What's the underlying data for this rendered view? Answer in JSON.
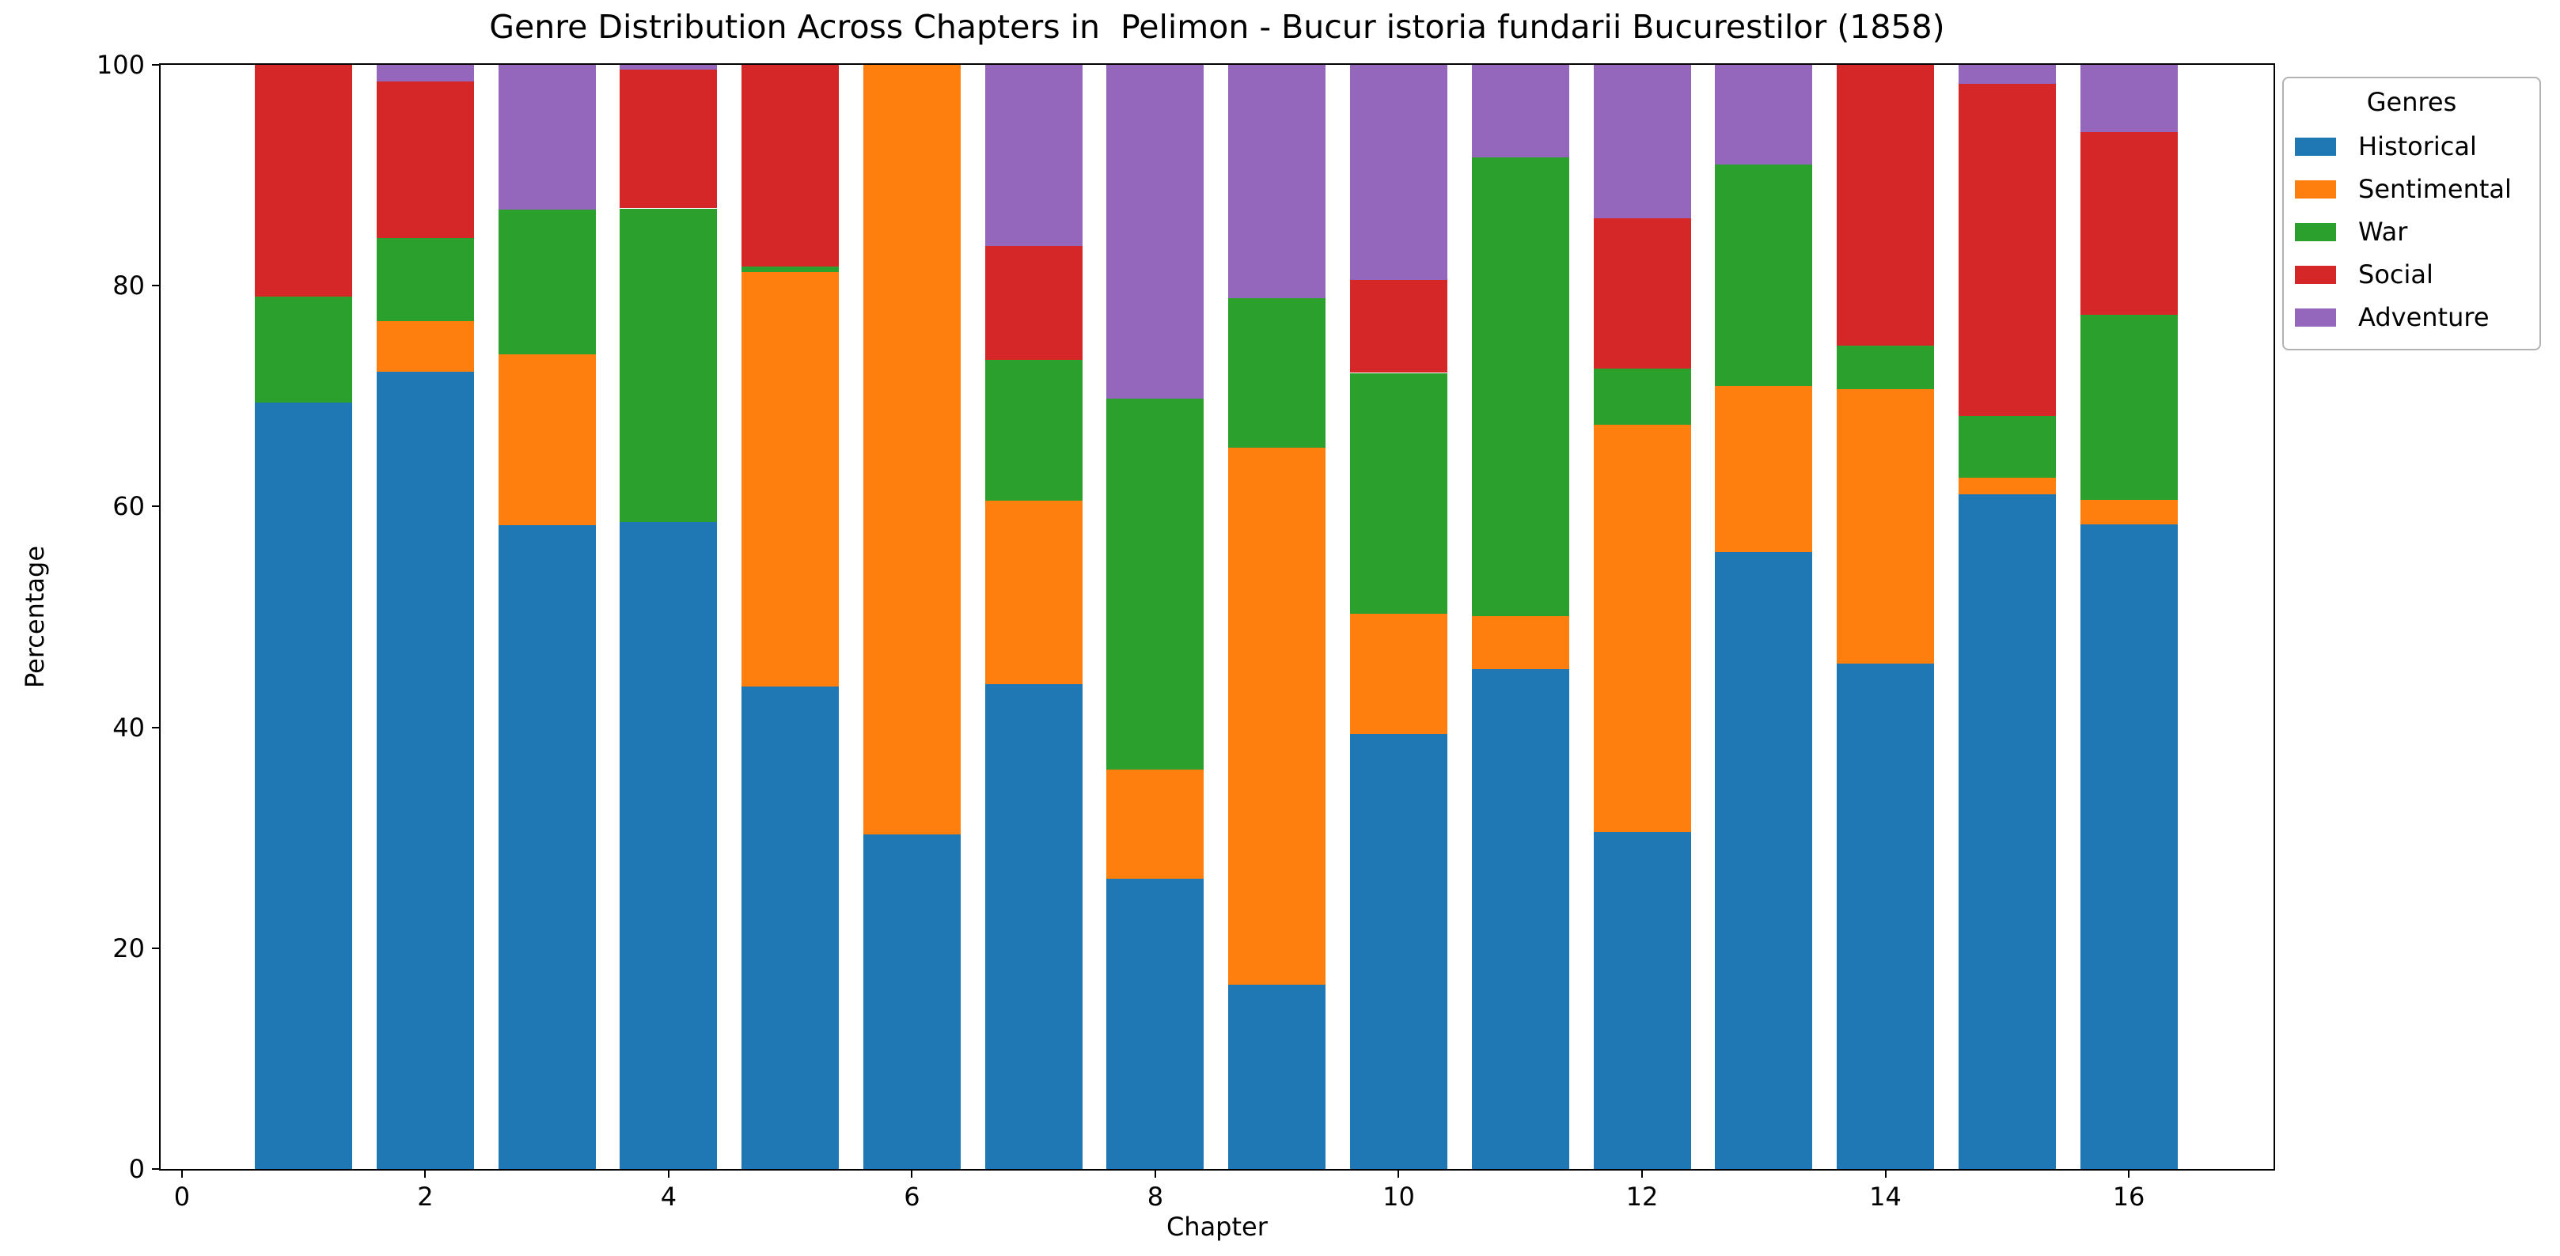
{
  "title": "Genre Distribution Across Chapters in  Pelimon - Bucur istoria fundarii Bucurestilor (1858)",
  "xlabel": "Chapter",
  "ylabel": "Percentage",
  "legend": {
    "title": "Genres",
    "items": [
      {
        "label": "Historical",
        "color": "#1f77b4"
      },
      {
        "label": "Sentimental",
        "color": "#ff7f0e"
      },
      {
        "label": "War",
        "color": "#2ca02c"
      },
      {
        "label": "Social",
        "color": "#d62728"
      },
      {
        "label": "Adventure",
        "color": "#9467bd"
      }
    ]
  },
  "chart_data": {
    "type": "bar",
    "stacked": true,
    "title": "Genre Distribution Across Chapters in  Pelimon - Bucur istoria fundarii Bucurestilor (1858)",
    "xlabel": "Chapter",
    "ylabel": "Percentage",
    "categories": [
      1,
      2,
      3,
      4,
      5,
      6,
      7,
      8,
      9,
      10,
      11,
      12,
      13,
      14,
      15,
      16
    ],
    "series": [
      {
        "name": "Historical",
        "color": "#1f77b4",
        "values": [
          69.4,
          72.2,
          58.3,
          58.6,
          43.7,
          30.3,
          43.9,
          26.3,
          16.7,
          39.4,
          45.3,
          30.5,
          55.9,
          45.8,
          61.1,
          58.4
        ]
      },
      {
        "name": "Sentimental",
        "color": "#ff7f0e",
        "values": [
          0,
          4.6,
          15.5,
          0,
          37.5,
          69.7,
          16.6,
          9.9,
          48.6,
          10.9,
          4.8,
          36.9,
          15.0,
          24.8,
          1.5,
          2.2
        ]
      },
      {
        "name": "War",
        "color": "#2ca02c",
        "values": [
          9.6,
          7.5,
          13.1,
          28.4,
          0.5,
          0,
          12.8,
          33.6,
          13.6,
          21.8,
          41.5,
          5.1,
          20.1,
          4.0,
          5.6,
          16.8
        ]
      },
      {
        "name": "Social",
        "color": "#d62728",
        "values": [
          21.0,
          14.2,
          0,
          12.6,
          18.3,
          0,
          10.3,
          0,
          0,
          8.4,
          0,
          13.6,
          0,
          25.4,
          30.1,
          16.5
        ]
      },
      {
        "name": "Adventure",
        "color": "#9467bd",
        "values": [
          0,
          1.5,
          13.1,
          0.4,
          0,
          0,
          16.4,
          30.2,
          21.1,
          19.5,
          8.4,
          13.9,
          9.0,
          0,
          1.7,
          6.1
        ]
      }
    ],
    "bar_width": 0.8,
    "x_ticks": [
      0,
      2,
      4,
      6,
      8,
      10,
      12,
      14,
      16
    ],
    "y_ticks": [
      0,
      20,
      40,
      60,
      80,
      100
    ],
    "xlim": [
      -0.175,
      17.19
    ],
    "ylim": [
      0,
      100
    ],
    "grid": false,
    "legend_position": "upper right, outside plot"
  }
}
